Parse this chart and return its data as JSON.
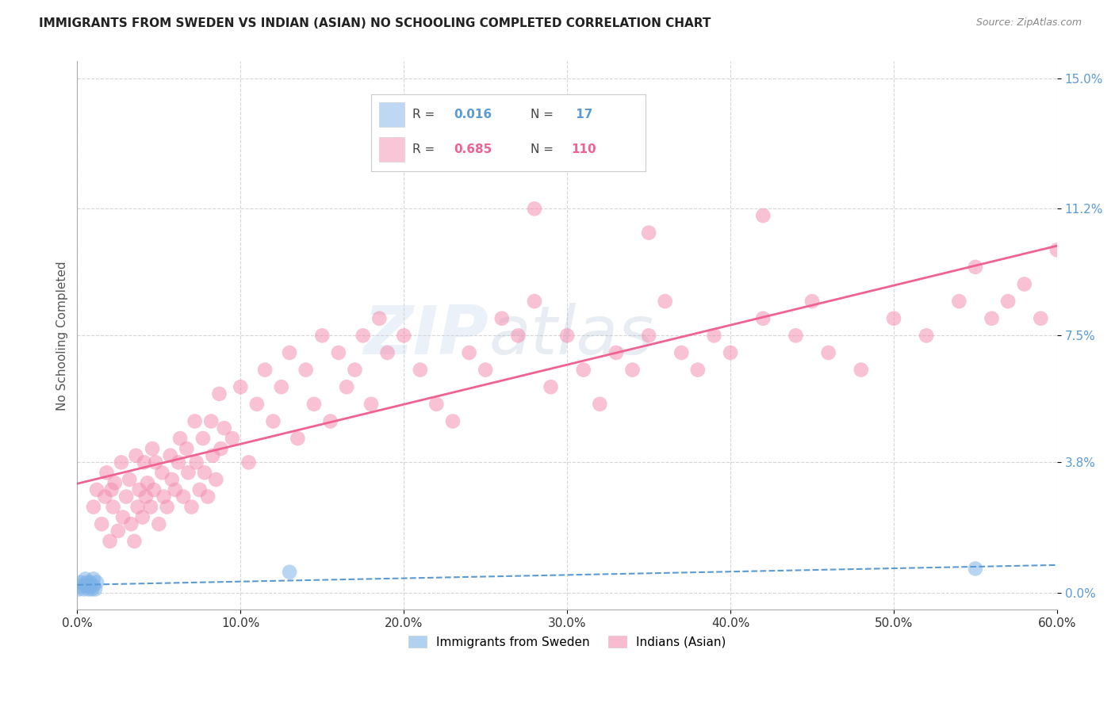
{
  "title": "IMMIGRANTS FROM SWEDEN VS INDIAN (ASIAN) NO SCHOOLING COMPLETED CORRELATION CHART",
  "source": "Source: ZipAtlas.com",
  "xlabel_ticks": [
    "0.0%",
    "10.0%",
    "20.0%",
    "30.0%",
    "40.0%",
    "50.0%",
    "60.0%"
  ],
  "xlabel_vals": [
    0.0,
    0.1,
    0.2,
    0.3,
    0.4,
    0.5,
    0.6
  ],
  "ylabel_ticks": [
    "0.0%",
    "3.8%",
    "7.5%",
    "11.2%",
    "15.0%"
  ],
  "ylabel_vals": [
    0.0,
    0.038,
    0.075,
    0.112,
    0.15
  ],
  "ylabel_label": "No Schooling Completed",
  "sweden_color": "#7eb3e8",
  "indian_color": "#f48fb1",
  "sweden_line_color": "#5b9bd5",
  "indian_line_color": "#f06292",
  "watermark_zip": "ZIP",
  "watermark_atlas": "atlas",
  "xlim": [
    0.0,
    0.6
  ],
  "ylim": [
    -0.005,
    0.155
  ],
  "sweden_x": [
    0.001,
    0.002,
    0.003,
    0.004,
    0.005,
    0.005,
    0.006,
    0.007,
    0.008,
    0.008,
    0.009,
    0.01,
    0.01,
    0.011,
    0.012,
    0.13,
    0.55
  ],
  "sweden_y": [
    0.001,
    0.003,
    0.002,
    0.001,
    0.002,
    0.004,
    0.003,
    0.001,
    0.002,
    0.003,
    0.001,
    0.002,
    0.004,
    0.001,
    0.003,
    0.006,
    0.007
  ],
  "indian_x": [
    0.01,
    0.012,
    0.015,
    0.017,
    0.018,
    0.02,
    0.021,
    0.022,
    0.023,
    0.025,
    0.027,
    0.028,
    0.03,
    0.032,
    0.033,
    0.035,
    0.036,
    0.037,
    0.038,
    0.04,
    0.041,
    0.042,
    0.043,
    0.045,
    0.046,
    0.047,
    0.048,
    0.05,
    0.052,
    0.053,
    0.055,
    0.057,
    0.058,
    0.06,
    0.062,
    0.063,
    0.065,
    0.067,
    0.068,
    0.07,
    0.072,
    0.073,
    0.075,
    0.077,
    0.078,
    0.08,
    0.082,
    0.083,
    0.085,
    0.087,
    0.088,
    0.09,
    0.095,
    0.1,
    0.105,
    0.11,
    0.115,
    0.12,
    0.125,
    0.13,
    0.135,
    0.14,
    0.145,
    0.15,
    0.155,
    0.16,
    0.165,
    0.17,
    0.175,
    0.18,
    0.185,
    0.19,
    0.2,
    0.21,
    0.22,
    0.23,
    0.24,
    0.25,
    0.26,
    0.27,
    0.28,
    0.29,
    0.3,
    0.31,
    0.32,
    0.33,
    0.34,
    0.35,
    0.36,
    0.37,
    0.38,
    0.39,
    0.4,
    0.42,
    0.44,
    0.45,
    0.46,
    0.48,
    0.5,
    0.52,
    0.54,
    0.55,
    0.56,
    0.57,
    0.58,
    0.59,
    0.6,
    0.28,
    0.35,
    0.42
  ],
  "indian_y": [
    0.025,
    0.03,
    0.02,
    0.028,
    0.035,
    0.015,
    0.03,
    0.025,
    0.032,
    0.018,
    0.038,
    0.022,
    0.028,
    0.033,
    0.02,
    0.015,
    0.04,
    0.025,
    0.03,
    0.022,
    0.038,
    0.028,
    0.032,
    0.025,
    0.042,
    0.03,
    0.038,
    0.02,
    0.035,
    0.028,
    0.025,
    0.04,
    0.033,
    0.03,
    0.038,
    0.045,
    0.028,
    0.042,
    0.035,
    0.025,
    0.05,
    0.038,
    0.03,
    0.045,
    0.035,
    0.028,
    0.05,
    0.04,
    0.033,
    0.058,
    0.042,
    0.048,
    0.045,
    0.06,
    0.038,
    0.055,
    0.065,
    0.05,
    0.06,
    0.07,
    0.045,
    0.065,
    0.055,
    0.075,
    0.05,
    0.07,
    0.06,
    0.065,
    0.075,
    0.055,
    0.08,
    0.07,
    0.075,
    0.065,
    0.055,
    0.05,
    0.07,
    0.065,
    0.08,
    0.075,
    0.085,
    0.06,
    0.075,
    0.065,
    0.055,
    0.07,
    0.065,
    0.075,
    0.085,
    0.07,
    0.065,
    0.075,
    0.07,
    0.08,
    0.075,
    0.085,
    0.07,
    0.065,
    0.08,
    0.075,
    0.085,
    0.095,
    0.08,
    0.085,
    0.09,
    0.08,
    0.1,
    0.112,
    0.105,
    0.11
  ]
}
